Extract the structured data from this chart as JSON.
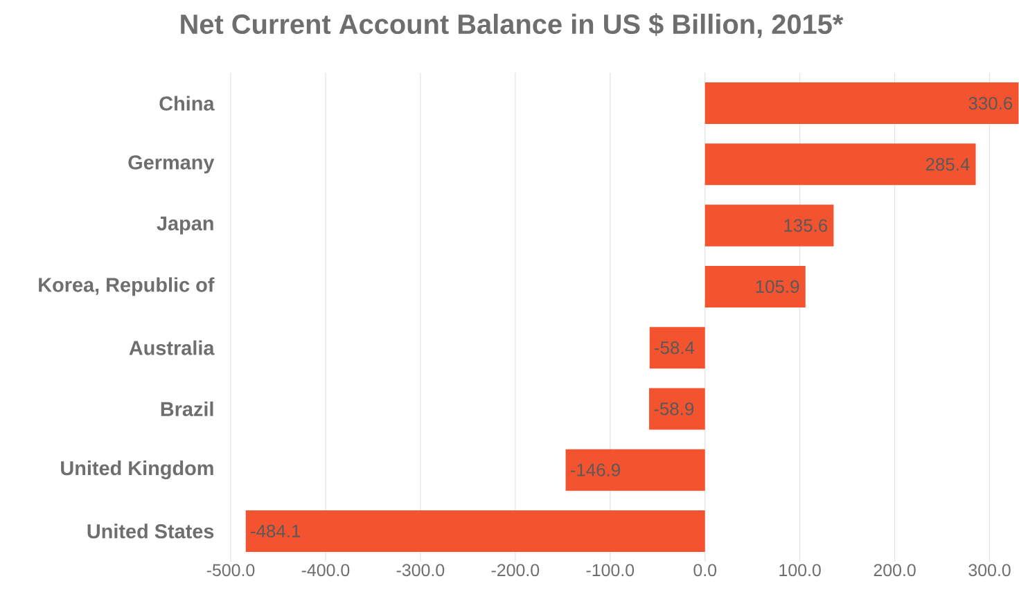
{
  "chart_data": {
    "type": "bar",
    "orientation": "horizontal",
    "title": "Net Current Account Balance in US $ Billion, 2015*",
    "categories": [
      "China",
      "Germany",
      "Japan",
      "Korea, Republic of",
      "Australia",
      "Brazil",
      "United Kingdom",
      "United States"
    ],
    "values": [
      330.6,
      285.4,
      135.6,
      105.9,
      -58.4,
      -58.9,
      -146.9,
      -484.1
    ],
    "color": "#f4532f",
    "xlim": [
      -500,
      331
    ],
    "xticks": [
      {
        "value": -500,
        "label": "-500.0"
      },
      {
        "value": -400,
        "label": "-400.0"
      },
      {
        "value": -300,
        "label": "-300.0"
      },
      {
        "value": -200,
        "label": "-200.0"
      },
      {
        "value": -100,
        "label": "-100.0"
      },
      {
        "value": 0,
        "label": "0.0"
      },
      {
        "value": 100,
        "label": "100.0"
      },
      {
        "value": 200,
        "label": "200.0"
      },
      {
        "value": 300,
        "label": "300.0"
      }
    ],
    "grid": "x",
    "data_labels": true
  }
}
